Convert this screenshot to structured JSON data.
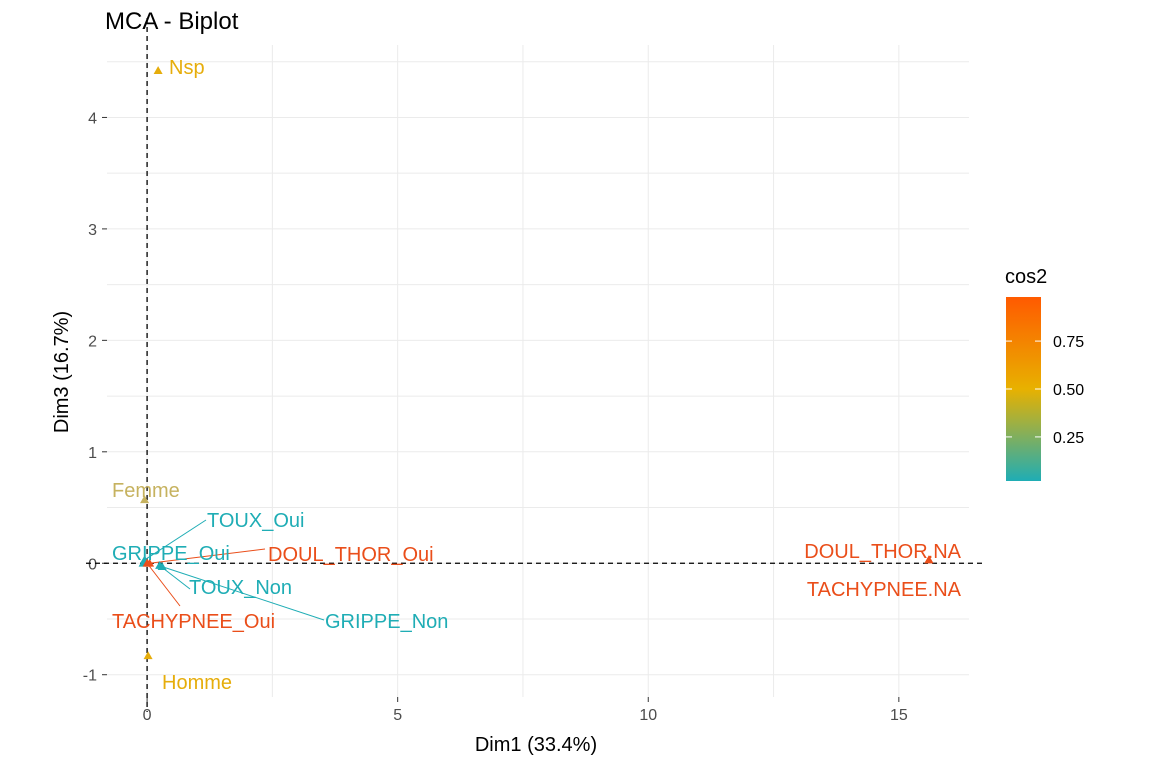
{
  "chart_data": {
    "type": "scatter",
    "title": "MCA - Biplot",
    "xlabel": "Dim1 (33.4%)",
    "ylabel": "Dim3 (16.7%)",
    "xlim": [
      -0.8,
      16.4
    ],
    "ylim": [
      -1.2,
      4.65
    ],
    "xticks": [
      0,
      5,
      10,
      15
    ],
    "yticks": [
      -1,
      0,
      1,
      2,
      3,
      4
    ],
    "reference_lines": {
      "x": 0,
      "y": 0,
      "style": "dashed"
    },
    "grid": true,
    "legend": {
      "title": "cos2",
      "position": "right",
      "ticks": [
        "0.25",
        "0.50",
        "0.75"
      ],
      "tick_values": [
        0.25,
        0.5,
        0.75
      ],
      "range": [
        0.02,
        0.98
      ],
      "colors": [
        "#1fadb5",
        "#e8b100",
        "#ff5a00"
      ]
    },
    "points": [
      {
        "label": "Nsp",
        "x": 0.22,
        "y": 4.42,
        "cos2": 0.62,
        "color": "#e6ad0b"
      },
      {
        "label": "Femme",
        "x": -0.05,
        "y": 0.57,
        "cos2": 0.42,
        "color": "#c6b25f"
      },
      {
        "label": "Homme",
        "x": 0.02,
        "y": -0.83,
        "cos2": 0.62,
        "color": "#e6ad0b"
      },
      {
        "label": "TOUX_Oui",
        "x": -0.05,
        "y": 0.03,
        "cos2": 0.05,
        "color": "#1fadb5"
      },
      {
        "label": "GRIPPE_Oui",
        "x": -0.08,
        "y": 0.0,
        "cos2": 0.05,
        "color": "#1fadb5"
      },
      {
        "label": "DOUL_THOR_Oui",
        "x": 0.05,
        "y": 0.0,
        "cos2": 0.95,
        "color": "#ea4e1a"
      },
      {
        "label": "TOUX_Non",
        "x": 0.25,
        "y": -0.02,
        "cos2": 0.05,
        "color": "#1fadb5"
      },
      {
        "label": "TACHYPNEE_Oui",
        "x": 0.0,
        "y": 0.0,
        "cos2": 0.95,
        "color": "#ea4e1a"
      },
      {
        "label": "GRIPPE_Non",
        "x": 0.3,
        "y": -0.03,
        "cos2": 0.05,
        "color": "#1fadb5"
      },
      {
        "label": "DOUL_THOR.NA",
        "x": 15.6,
        "y": 0.03,
        "cos2": 0.95,
        "color": "#ea4e1a"
      },
      {
        "label": "TACHYPNEE.NA",
        "x": 15.6,
        "y": 0.03,
        "cos2": 0.95,
        "color": "#ea4e1a"
      }
    ]
  }
}
